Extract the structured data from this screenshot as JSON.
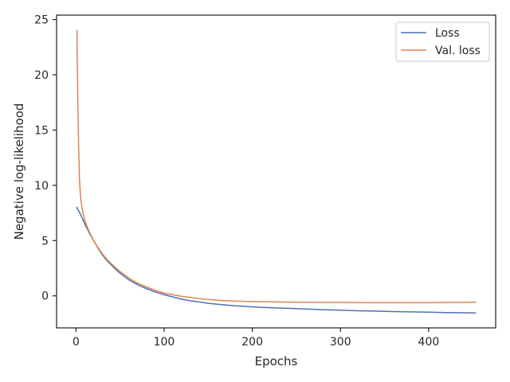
{
  "chart_data": {
    "type": "line",
    "xlabel": "Epochs",
    "ylabel": "Negative log-likelihood",
    "xlim": [
      -22,
      476
    ],
    "ylim": [
      -2.9,
      25.4
    ],
    "xticks": [
      0,
      100,
      200,
      300,
      400
    ],
    "yticks": [
      0,
      5,
      10,
      15,
      20,
      25
    ],
    "grid": false,
    "legend_position": "top-right",
    "series": [
      {
        "name": "Loss",
        "color": "#4c72b0",
        "points": [
          [
            1,
            8.0
          ],
          [
            5,
            7.4
          ],
          [
            10,
            6.5
          ],
          [
            15,
            5.7
          ],
          [
            20,
            5.0
          ],
          [
            25,
            4.3
          ],
          [
            30,
            3.7
          ],
          [
            35,
            3.2
          ],
          [
            40,
            2.8
          ],
          [
            45,
            2.4
          ],
          [
            50,
            2.05
          ],
          [
            55,
            1.75
          ],
          [
            60,
            1.45
          ],
          [
            70,
            1.0
          ],
          [
            80,
            0.65
          ],
          [
            90,
            0.35
          ],
          [
            100,
            0.1
          ],
          [
            110,
            -0.1
          ],
          [
            120,
            -0.3
          ],
          [
            130,
            -0.45
          ],
          [
            140,
            -0.55
          ],
          [
            150,
            -0.68
          ],
          [
            160,
            -0.76
          ],
          [
            170,
            -0.83
          ],
          [
            180,
            -0.9
          ],
          [
            190,
            -0.95
          ],
          [
            200,
            -1.0
          ],
          [
            220,
            -1.07
          ],
          [
            240,
            -1.13
          ],
          [
            260,
            -1.19
          ],
          [
            280,
            -1.25
          ],
          [
            300,
            -1.3
          ],
          [
            320,
            -1.35
          ],
          [
            340,
            -1.38
          ],
          [
            360,
            -1.42
          ],
          [
            380,
            -1.45
          ],
          [
            400,
            -1.48
          ],
          [
            420,
            -1.51
          ],
          [
            440,
            -1.53
          ],
          [
            453,
            -1.55
          ]
        ]
      },
      {
        "name": "Val. loss",
        "color": "#dd8452",
        "points": [
          [
            1,
            24.0
          ],
          [
            2,
            18.0
          ],
          [
            3,
            13.5
          ],
          [
            4,
            10.5
          ],
          [
            5,
            9.2
          ],
          [
            6,
            8.4
          ],
          [
            8,
            7.5
          ],
          [
            10,
            6.8
          ],
          [
            15,
            5.8
          ],
          [
            20,
            5.0
          ],
          [
            25,
            4.35
          ],
          [
            30,
            3.8
          ],
          [
            35,
            3.3
          ],
          [
            40,
            2.9
          ],
          [
            45,
            2.55
          ],
          [
            50,
            2.2
          ],
          [
            55,
            1.9
          ],
          [
            60,
            1.6
          ],
          [
            70,
            1.15
          ],
          [
            80,
            0.8
          ],
          [
            90,
            0.5
          ],
          [
            100,
            0.25
          ],
          [
            110,
            0.1
          ],
          [
            120,
            -0.05
          ],
          [
            130,
            -0.15
          ],
          [
            140,
            -0.25
          ],
          [
            150,
            -0.33
          ],
          [
            160,
            -0.4
          ],
          [
            170,
            -0.44
          ],
          [
            180,
            -0.48
          ],
          [
            190,
            -0.5
          ],
          [
            200,
            -0.52
          ],
          [
            220,
            -0.54
          ],
          [
            240,
            -0.57
          ],
          [
            260,
            -0.58
          ],
          [
            280,
            -0.6
          ],
          [
            300,
            -0.6
          ],
          [
            320,
            -0.61
          ],
          [
            340,
            -0.62
          ],
          [
            360,
            -0.62
          ],
          [
            380,
            -0.62
          ],
          [
            400,
            -0.62
          ],
          [
            420,
            -0.6
          ],
          [
            440,
            -0.6
          ],
          [
            453,
            -0.58
          ]
        ]
      }
    ]
  }
}
